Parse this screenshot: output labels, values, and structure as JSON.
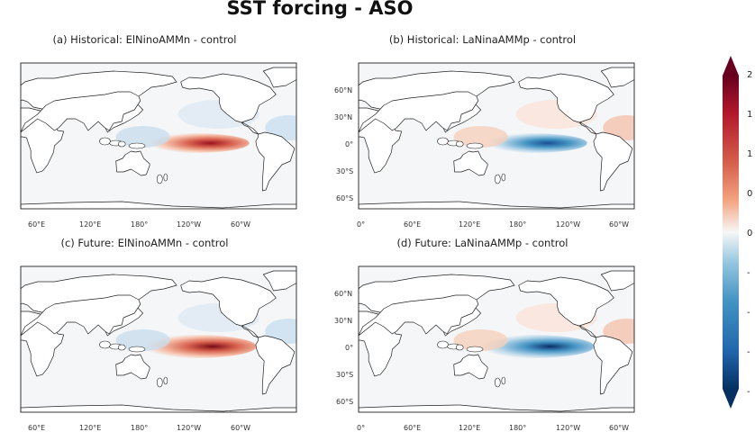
{
  "title": "SST forcing - ASO",
  "panels": [
    {
      "id": "a",
      "title": "(a) Historical: ElNinoAMMn - control",
      "sign": "pos",
      "future": false
    },
    {
      "id": "b",
      "title": "(b) Historical: LaNinaAMMp - control",
      "sign": "neg",
      "future": false
    },
    {
      "id": "c",
      "title": "(c) Future: ElNinoAMMn - control",
      "sign": "pos",
      "future": true
    },
    {
      "id": "d",
      "title": "(d) Future: LaNinaAMMp - control",
      "sign": "neg",
      "future": true
    }
  ],
  "lon_ticks": [
    "0°",
    "60°E",
    "120°E",
    "180°",
    "120°W",
    "60°W"
  ],
  "lat_ticks": [
    "60°N",
    "30°N",
    "0°",
    "30°S",
    "60°S"
  ],
  "colorbar": {
    "labels": [
      "2",
      "1",
      "1",
      "0",
      "0",
      "-",
      "-",
      "-",
      "-"
    ],
    "colormap": "RdBu_r",
    "extend": "both"
  },
  "colors": {
    "land": "#ffffff",
    "ocean": "#f4f6f8",
    "warm": "#b2182b",
    "cool": "#2166ac"
  }
}
